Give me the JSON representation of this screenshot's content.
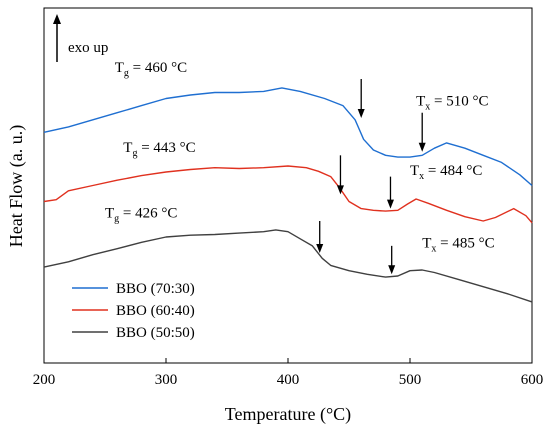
{
  "chart_data": {
    "type": "line",
    "xlabel": "Temperature (°C)",
    "ylabel": "Heat Flow (a. u.)",
    "xlim": [
      200,
      600
    ],
    "xticks": [
      200,
      300,
      400,
      500,
      600
    ],
    "ylim": [
      0,
      10
    ],
    "yticks_shown": false,
    "grid": false,
    "legend_position": "bottom-left",
    "exo_label": "exo up",
    "series": [
      {
        "name": "BBO (70:30)",
        "color": "#1f6fd1",
        "points": [
          [
            200,
            6.5
          ],
          [
            220,
            6.65
          ],
          [
            240,
            6.85
          ],
          [
            260,
            7.05
          ],
          [
            280,
            7.25
          ],
          [
            300,
            7.45
          ],
          [
            320,
            7.55
          ],
          [
            340,
            7.62
          ],
          [
            360,
            7.62
          ],
          [
            380,
            7.65
          ],
          [
            395,
            7.75
          ],
          [
            410,
            7.65
          ],
          [
            430,
            7.45
          ],
          [
            445,
            7.25
          ],
          [
            455,
            6.85
          ],
          [
            462,
            6.3
          ],
          [
            470,
            6.0
          ],
          [
            480,
            5.85
          ],
          [
            490,
            5.8
          ],
          [
            500,
            5.8
          ],
          [
            510,
            5.85
          ],
          [
            520,
            6.05
          ],
          [
            530,
            6.2
          ],
          [
            545,
            6.05
          ],
          [
            560,
            5.85
          ],
          [
            575,
            5.65
          ],
          [
            590,
            5.3
          ],
          [
            600,
            5.0
          ]
        ]
      },
      {
        "name": "BBO (60:40)",
        "color": "#e0311f",
        "points": [
          [
            200,
            4.55
          ],
          [
            210,
            4.6
          ],
          [
            220,
            4.85
          ],
          [
            240,
            5.0
          ],
          [
            260,
            5.15
          ],
          [
            280,
            5.28
          ],
          [
            300,
            5.38
          ],
          [
            320,
            5.45
          ],
          [
            340,
            5.5
          ],
          [
            360,
            5.48
          ],
          [
            380,
            5.5
          ],
          [
            400,
            5.55
          ],
          [
            415,
            5.5
          ],
          [
            425,
            5.4
          ],
          [
            435,
            5.25
          ],
          [
            442,
            4.95
          ],
          [
            450,
            4.55
          ],
          [
            460,
            4.35
          ],
          [
            470,
            4.3
          ],
          [
            480,
            4.28
          ],
          [
            490,
            4.3
          ],
          [
            498,
            4.48
          ],
          [
            505,
            4.62
          ],
          [
            515,
            4.5
          ],
          [
            530,
            4.3
          ],
          [
            545,
            4.12
          ],
          [
            560,
            4.0
          ],
          [
            570,
            4.1
          ],
          [
            585,
            4.35
          ],
          [
            595,
            4.15
          ],
          [
            600,
            3.95
          ]
        ]
      },
      {
        "name": "BBO (50:50)",
        "color": "#404040",
        "points": [
          [
            200,
            2.7
          ],
          [
            220,
            2.85
          ],
          [
            240,
            3.05
          ],
          [
            260,
            3.22
          ],
          [
            280,
            3.4
          ],
          [
            300,
            3.55
          ],
          [
            320,
            3.6
          ],
          [
            340,
            3.62
          ],
          [
            360,
            3.66
          ],
          [
            380,
            3.7
          ],
          [
            390,
            3.75
          ],
          [
            400,
            3.7
          ],
          [
            410,
            3.5
          ],
          [
            420,
            3.3
          ],
          [
            428,
            2.95
          ],
          [
            435,
            2.75
          ],
          [
            450,
            2.6
          ],
          [
            465,
            2.5
          ],
          [
            480,
            2.42
          ],
          [
            490,
            2.45
          ],
          [
            500,
            2.6
          ],
          [
            510,
            2.62
          ],
          [
            520,
            2.55
          ],
          [
            540,
            2.35
          ],
          [
            560,
            2.15
          ],
          [
            580,
            1.95
          ],
          [
            600,
            1.72
          ]
        ]
      }
    ],
    "annotations": [
      {
        "sym": "T",
        "sub": "g",
        "rest": " = 460 °C",
        "tx": 258,
        "ty": 8.2,
        "arrow_x": 460,
        "arrow_y_top": 8.0,
        "arrow_y_bot": 6.9
      },
      {
        "sym": "T",
        "sub": "x",
        "rest": " = 510 °C",
        "tx": 505,
        "ty": 7.25,
        "arrow_x": 510,
        "arrow_y_top": 7.05,
        "arrow_y_bot": 5.95
      },
      {
        "sym": "T",
        "sub": "g",
        "rest": " = 443 °C",
        "tx": 265,
        "ty": 5.95,
        "arrow_x": 443,
        "arrow_y_top": 5.85,
        "arrow_y_bot": 4.75
      },
      {
        "sym": "T",
        "sub": "x",
        "rest": " = 484 °C",
        "tx": 500,
        "ty": 5.3,
        "arrow_x": 484,
        "arrow_y_top": 5.25,
        "arrow_y_bot": 4.35
      },
      {
        "sym": "T",
        "sub": "g",
        "rest": " = 426 °C",
        "tx": 250,
        "ty": 4.1,
        "arrow_x": 426,
        "arrow_y_top": 4.0,
        "arrow_y_bot": 3.1
      },
      {
        "sym": "T",
        "sub": "x",
        "rest": " = 485 °C",
        "tx": 510,
        "ty": 3.25,
        "arrow_x": 485,
        "arrow_y_top": 3.3,
        "arrow_y_bot": 2.5
      }
    ]
  }
}
